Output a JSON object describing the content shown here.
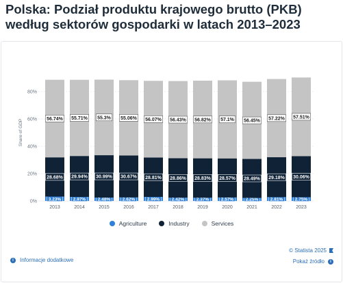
{
  "title": "Polska: Podział produktu krajowego brutto (PKB) według sektorów gospodarki w latach 2013–2023",
  "chart_data": {
    "type": "bar",
    "stacked": true,
    "categories": [
      "2013",
      "2014",
      "2015",
      "2016",
      "2017",
      "2018",
      "2019",
      "2020",
      "2021",
      "2022",
      "2023"
    ],
    "series": [
      {
        "name": "Agriculture",
        "color": "#2f7fd6",
        "values": [
          3.23,
          2.97,
          2.48,
          2.62,
          2.99,
          2.42,
          2.37,
          2.57,
          2.25,
          2.81,
          2.75
        ],
        "labels": [
          "3.23%",
          "2.97%",
          "2.48%",
          "2.62%",
          "2.99%",
          "2.42%",
          "2.37%",
          "2.57%",
          "2.25%",
          "2.81%",
          "2.75%"
        ]
      },
      {
        "name": "Industry",
        "color": "#0f2236",
        "values": [
          28.68,
          29.94,
          30.99,
          30.67,
          28.81,
          28.86,
          28.83,
          28.57,
          28.49,
          29.18,
          30.06
        ],
        "labels": [
          "28.68%",
          "29.94%",
          "30.99%",
          "30.67%",
          "28.81%",
          "28.86%",
          "28.83%",
          "28.57%",
          "28.49%",
          "29.18%",
          "30.06%"
        ]
      },
      {
        "name": "Services",
        "color": "#c4c4c4",
        "values": [
          56.74,
          55.71,
          55.3,
          55.06,
          56.07,
          56.43,
          56.82,
          57.1,
          56.45,
          57.22,
          57.51
        ],
        "labels": [
          "56.74%",
          "55.71%",
          "55.3%",
          "55.06%",
          "56.07%",
          "56.43%",
          "56.82%",
          "57.1%",
          "56.45%",
          "57.22%",
          "57.51%"
        ]
      }
    ],
    "ylabel": "Share of GDP",
    "ylim": [
      0,
      100
    ],
    "yticks": [
      0,
      20,
      40,
      60,
      80
    ],
    "ytick_labels": [
      "0%",
      "20%",
      "40%",
      "60%",
      "80%"
    ],
    "grid": true,
    "legend_position": "bottom"
  },
  "footer": {
    "credit": "© Statista 2025",
    "info": "Informacje dodatkowe",
    "source": "Pokaż źródło"
  }
}
